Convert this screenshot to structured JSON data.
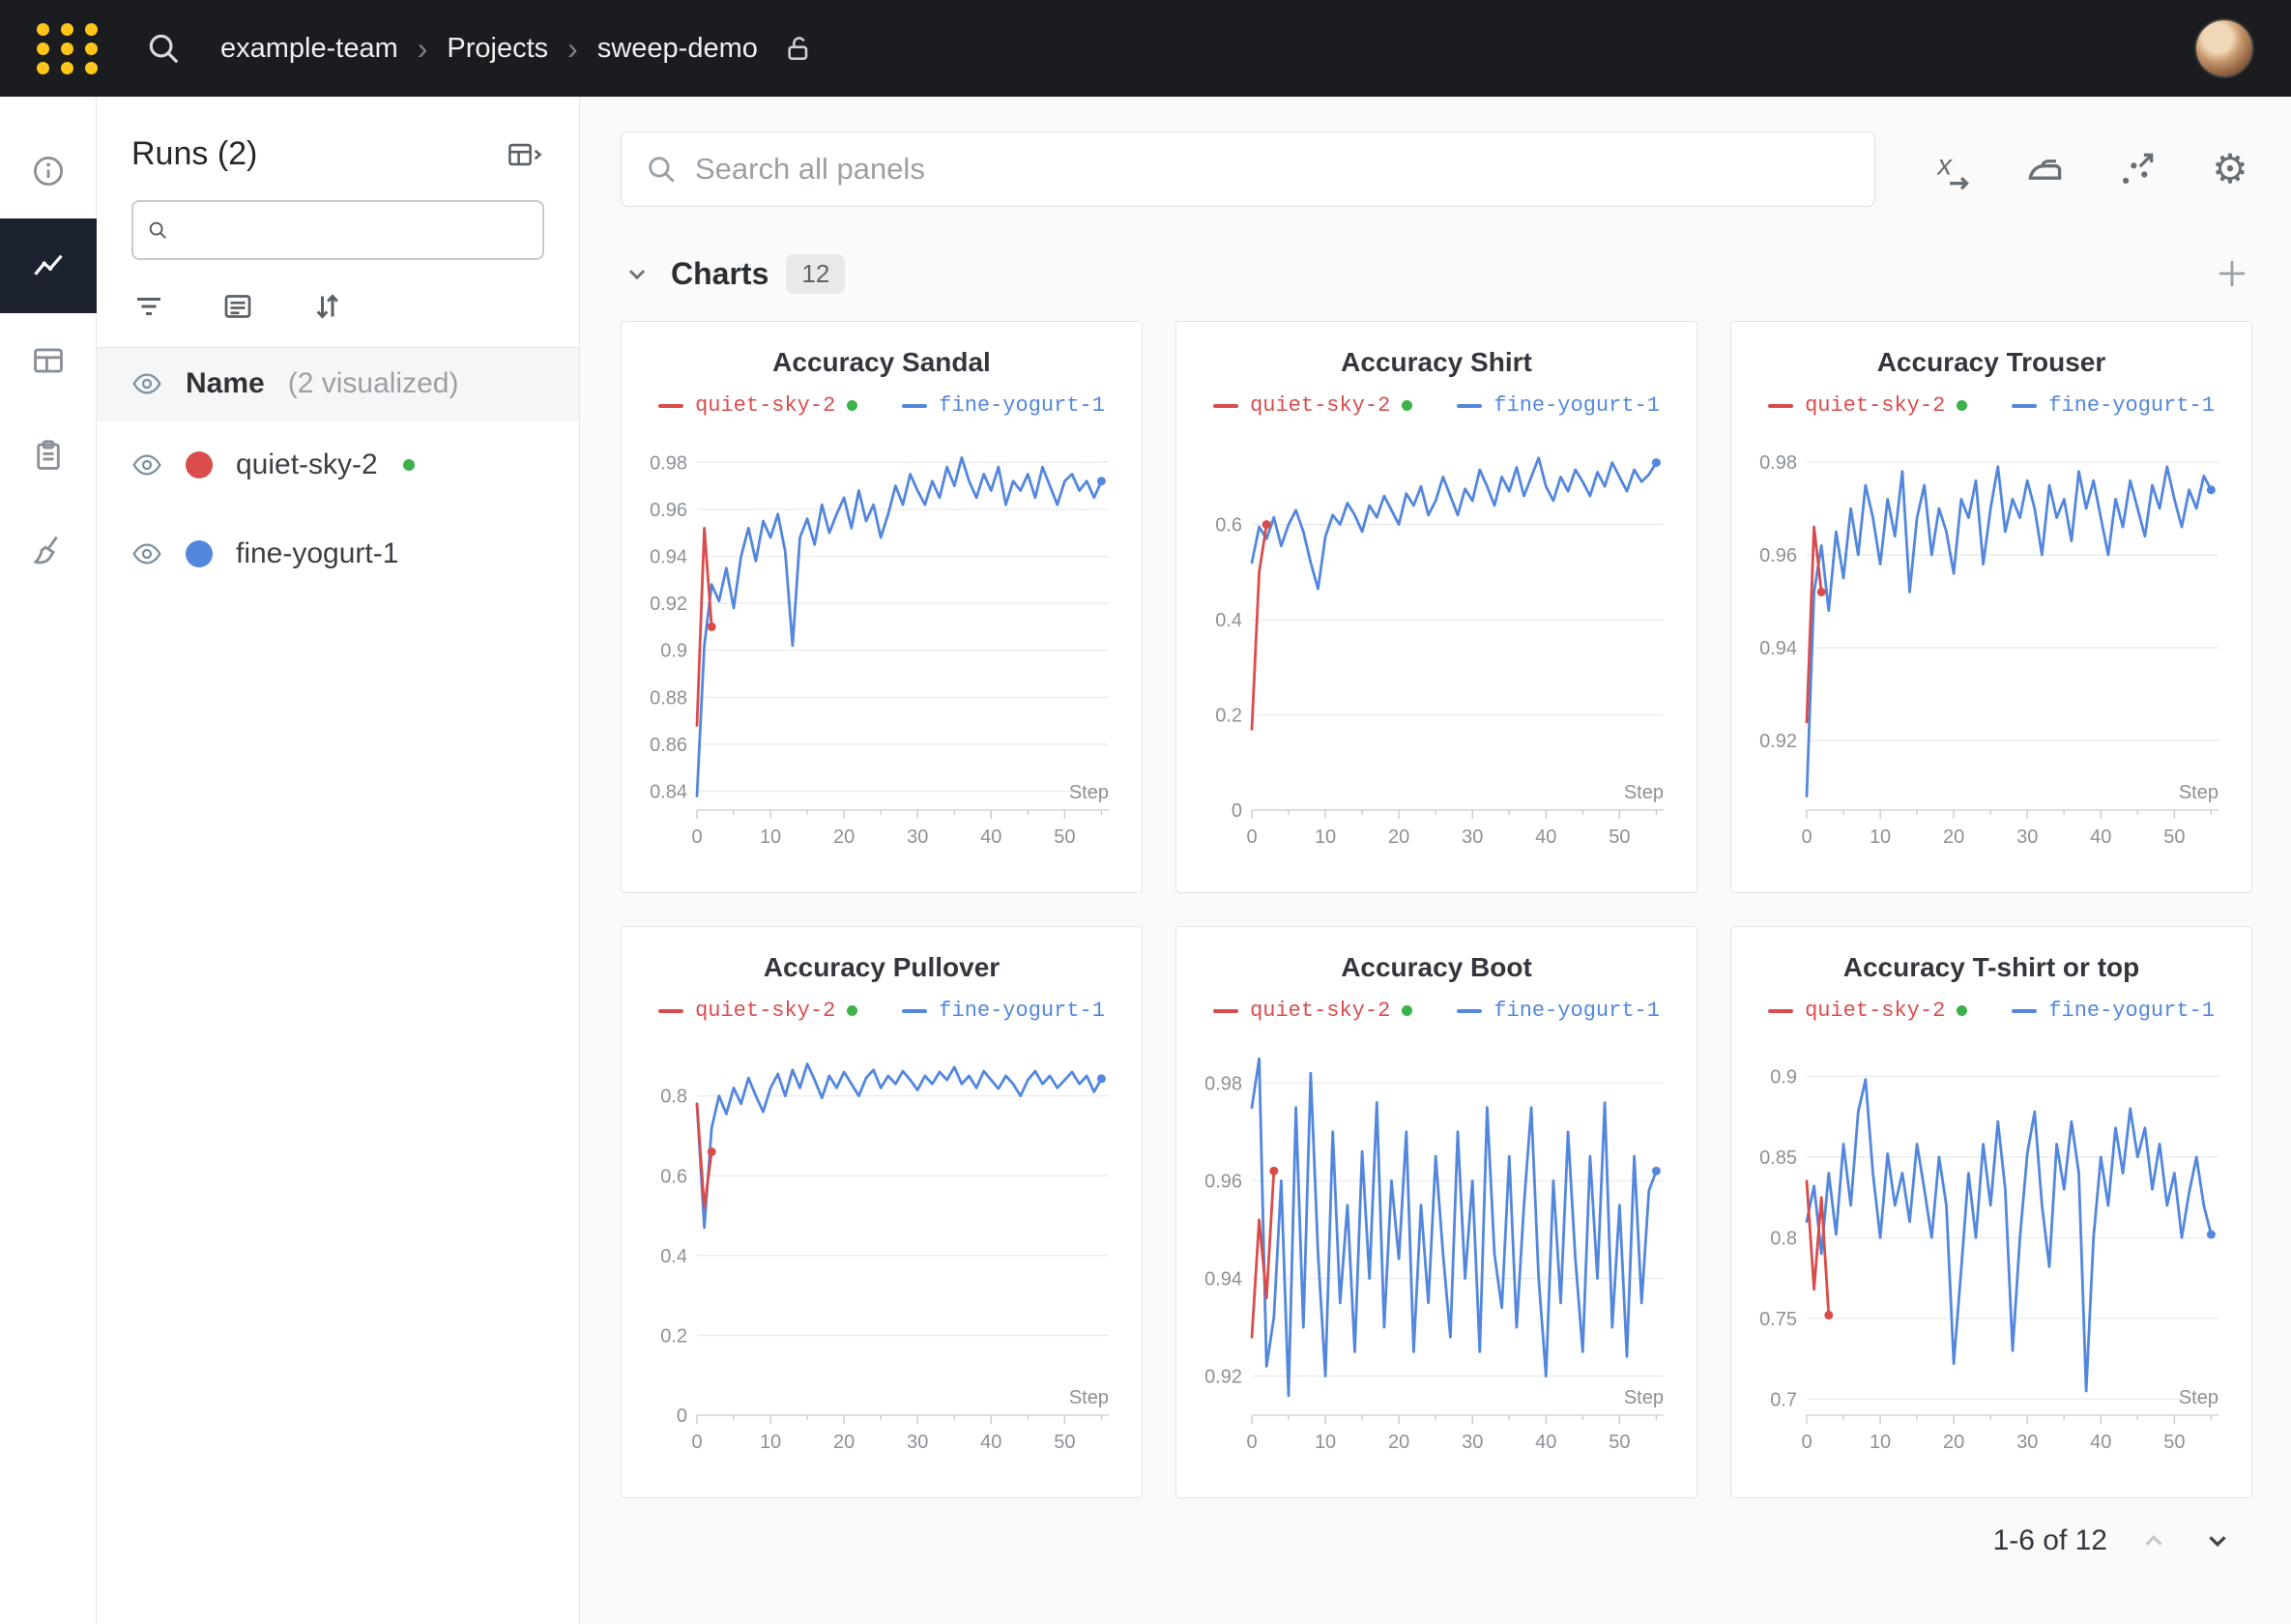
{
  "navbar": {
    "team": "example-team",
    "section": "Projects",
    "project": "sweep-demo"
  },
  "rail": {
    "items": [
      "info",
      "workspace-charts",
      "tables",
      "reports",
      "sweeps"
    ],
    "active_item": "workspace-charts"
  },
  "sidebar": {
    "title": "Runs (2)",
    "name_label": "Name",
    "visualized_label": "(2 visualized)",
    "runs": [
      {
        "name": "quiet-sky-2",
        "color": "#DA4C4C",
        "running": true
      },
      {
        "name": "fine-yogurt-1",
        "color": "#5387DD",
        "running": false
      }
    ]
  },
  "panels": {
    "search_placeholder": "Search all panels",
    "section_title": "Charts",
    "count": "12",
    "pagination_label": "1-6 of 12",
    "toolbar_icons": [
      "x-axis-icon",
      "smoothing-iron-icon",
      "scatter-plot-icon",
      "settings-gear-icon"
    ],
    "legend": [
      {
        "name": "quiet-sky-2",
        "color": "#DA4C4C",
        "status_dot": true
      },
      {
        "name": "fine-yogurt-1",
        "color": "#5387DD",
        "status_dot": false
      }
    ]
  },
  "colors": {
    "brand_yellow": "#FFC61A",
    "run_red": "#DA4C4C",
    "run_blue": "#5387DD",
    "running_green": "#3BB24A"
  },
  "chart_data": [
    {
      "type": "line",
      "title": "Accuracy Sandal",
      "xlabel": "Step",
      "xlim": [
        0,
        56
      ],
      "x_ticks": [
        0,
        10,
        20,
        30,
        40,
        50
      ],
      "ylim": [
        0.832,
        0.99
      ],
      "y_ticks": [
        0.84,
        0.86,
        0.88,
        0.9,
        0.92,
        0.94,
        0.96,
        0.98
      ],
      "series": [
        {
          "name": "fine-yogurt-1",
          "color": "#5387DD",
          "values": [
            0.838,
            0.902,
            0.928,
            0.921,
            0.935,
            0.918,
            0.94,
            0.952,
            0.938,
            0.955,
            0.948,
            0.958,
            0.942,
            0.902,
            0.948,
            0.956,
            0.945,
            0.962,
            0.95,
            0.958,
            0.965,
            0.952,
            0.968,
            0.955,
            0.962,
            0.948,
            0.958,
            0.97,
            0.962,
            0.975,
            0.968,
            0.962,
            0.972,
            0.965,
            0.978,
            0.97,
            0.982,
            0.972,
            0.965,
            0.975,
            0.968,
            0.978,
            0.962,
            0.972,
            0.968,
            0.975,
            0.965,
            0.978,
            0.97,
            0.962,
            0.972,
            0.975,
            0.968,
            0.972,
            0.965,
            0.972
          ]
        },
        {
          "name": "quiet-sky-2",
          "color": "#DA4C4C",
          "values": [
            0.868,
            0.952,
            0.91
          ]
        }
      ]
    },
    {
      "type": "line",
      "title": "Accuracy Shirt",
      "xlabel": "Step",
      "xlim": [
        0,
        56
      ],
      "x_ticks": [
        0,
        10,
        20,
        30,
        40,
        50
      ],
      "ylim": [
        0,
        0.78
      ],
      "y_ticks": [
        0,
        0.2,
        0.4,
        0.6
      ],
      "series": [
        {
          "name": "fine-yogurt-1",
          "color": "#5387DD",
          "values": [
            0.52,
            0.595,
            0.57,
            0.615,
            0.555,
            0.6,
            0.63,
            0.585,
            0.52,
            0.465,
            0.575,
            0.62,
            0.6,
            0.645,
            0.62,
            0.585,
            0.64,
            0.615,
            0.66,
            0.63,
            0.6,
            0.665,
            0.64,
            0.68,
            0.62,
            0.65,
            0.7,
            0.66,
            0.62,
            0.675,
            0.65,
            0.715,
            0.68,
            0.64,
            0.7,
            0.67,
            0.72,
            0.66,
            0.7,
            0.74,
            0.68,
            0.65,
            0.7,
            0.67,
            0.715,
            0.69,
            0.66,
            0.71,
            0.68,
            0.73,
            0.7,
            0.67,
            0.715,
            0.69,
            0.705,
            0.73
          ]
        },
        {
          "name": "quiet-sky-2",
          "color": "#DA4C4C",
          "values": [
            0.17,
            0.5,
            0.6
          ]
        }
      ]
    },
    {
      "type": "line",
      "title": "Accuracy Trouser",
      "xlabel": "Step",
      "xlim": [
        0,
        56
      ],
      "x_ticks": [
        0,
        10,
        20,
        30,
        40,
        50
      ],
      "ylim": [
        0.905,
        0.985
      ],
      "y_ticks": [
        0.92,
        0.94,
        0.96,
        0.98
      ],
      "series": [
        {
          "name": "fine-yogurt-1",
          "color": "#5387DD",
          "values": [
            0.908,
            0.952,
            0.962,
            0.948,
            0.965,
            0.955,
            0.97,
            0.96,
            0.975,
            0.968,
            0.958,
            0.972,
            0.964,
            0.978,
            0.952,
            0.968,
            0.975,
            0.96,
            0.97,
            0.965,
            0.956,
            0.972,
            0.968,
            0.976,
            0.958,
            0.97,
            0.979,
            0.965,
            0.972,
            0.968,
            0.976,
            0.97,
            0.96,
            0.975,
            0.968,
            0.972,
            0.963,
            0.978,
            0.97,
            0.976,
            0.968,
            0.96,
            0.972,
            0.966,
            0.976,
            0.97,
            0.964,
            0.975,
            0.97,
            0.979,
            0.972,
            0.966,
            0.974,
            0.97,
            0.977,
            0.974
          ]
        },
        {
          "name": "quiet-sky-2",
          "color": "#DA4C4C",
          "values": [
            0.924,
            0.966,
            0.952
          ]
        }
      ]
    },
    {
      "type": "line",
      "title": "Accuracy Pullover",
      "xlabel": "Step",
      "xlim": [
        0,
        56
      ],
      "x_ticks": [
        0,
        10,
        20,
        30,
        40,
        50
      ],
      "ylim": [
        0,
        0.93
      ],
      "y_ticks": [
        0,
        0.2,
        0.4,
        0.6,
        0.8
      ],
      "series": [
        {
          "name": "fine-yogurt-1",
          "color": "#5387DD",
          "values": [
            0.78,
            0.47,
            0.72,
            0.8,
            0.755,
            0.82,
            0.78,
            0.845,
            0.8,
            0.76,
            0.82,
            0.855,
            0.8,
            0.865,
            0.82,
            0.88,
            0.84,
            0.795,
            0.85,
            0.82,
            0.86,
            0.83,
            0.8,
            0.845,
            0.865,
            0.82,
            0.85,
            0.83,
            0.862,
            0.84,
            0.815,
            0.85,
            0.83,
            0.86,
            0.84,
            0.872,
            0.83,
            0.85,
            0.82,
            0.862,
            0.84,
            0.818,
            0.85,
            0.83,
            0.8,
            0.84,
            0.862,
            0.83,
            0.85,
            0.82,
            0.84,
            0.86,
            0.83,
            0.85,
            0.81,
            0.843
          ]
        },
        {
          "name": "quiet-sky-2",
          "color": "#DA4C4C",
          "values": [
            0.78,
            0.52,
            0.66
          ]
        }
      ]
    },
    {
      "type": "line",
      "title": "Accuracy Boot",
      "xlabel": "Step",
      "xlim": [
        0,
        56
      ],
      "x_ticks": [
        0,
        10,
        20,
        30,
        40,
        50
      ],
      "ylim": [
        0.912,
        0.988
      ],
      "y_ticks": [
        0.92,
        0.94,
        0.96,
        0.98
      ],
      "series": [
        {
          "name": "fine-yogurt-1",
          "color": "#5387DD",
          "values": [
            0.975,
            0.985,
            0.922,
            0.932,
            0.96,
            0.916,
            0.975,
            0.93,
            0.982,
            0.945,
            0.92,
            0.97,
            0.935,
            0.955,
            0.925,
            0.966,
            0.94,
            0.976,
            0.93,
            0.96,
            0.944,
            0.97,
            0.925,
            0.955,
            0.935,
            0.965,
            0.945,
            0.928,
            0.97,
            0.94,
            0.96,
            0.925,
            0.975,
            0.945,
            0.934,
            0.965,
            0.93,
            0.955,
            0.975,
            0.94,
            0.92,
            0.96,
            0.935,
            0.97,
            0.944,
            0.925,
            0.965,
            0.94,
            0.976,
            0.93,
            0.955,
            0.924,
            0.965,
            0.935,
            0.958,
            0.962
          ]
        },
        {
          "name": "quiet-sky-2",
          "color": "#DA4C4C",
          "values": [
            0.928,
            0.952,
            0.936,
            0.962
          ]
        }
      ]
    },
    {
      "type": "line",
      "title": "Accuracy T-shirt or top",
      "xlabel": "Step",
      "xlim": [
        0,
        56
      ],
      "x_ticks": [
        0,
        10,
        20,
        30,
        40,
        50
      ],
      "ylim": [
        0.69,
        0.92
      ],
      "y_ticks": [
        0.7,
        0.75,
        0.8,
        0.85,
        0.9
      ],
      "series": [
        {
          "name": "fine-yogurt-1",
          "color": "#5387DD",
          "values": [
            0.81,
            0.832,
            0.79,
            0.84,
            0.802,
            0.858,
            0.82,
            0.878,
            0.898,
            0.84,
            0.8,
            0.852,
            0.82,
            0.84,
            0.81,
            0.858,
            0.83,
            0.8,
            0.85,
            0.82,
            0.722,
            0.78,
            0.84,
            0.8,
            0.858,
            0.82,
            0.872,
            0.83,
            0.73,
            0.8,
            0.852,
            0.878,
            0.82,
            0.782,
            0.858,
            0.83,
            0.872,
            0.84,
            0.705,
            0.8,
            0.85,
            0.82,
            0.868,
            0.84,
            0.88,
            0.85,
            0.868,
            0.83,
            0.858,
            0.82,
            0.84,
            0.8,
            0.828,
            0.85,
            0.82,
            0.802
          ]
        },
        {
          "name": "quiet-sky-2",
          "color": "#DA4C4C",
          "values": [
            0.835,
            0.768,
            0.825,
            0.752
          ]
        }
      ]
    }
  ]
}
